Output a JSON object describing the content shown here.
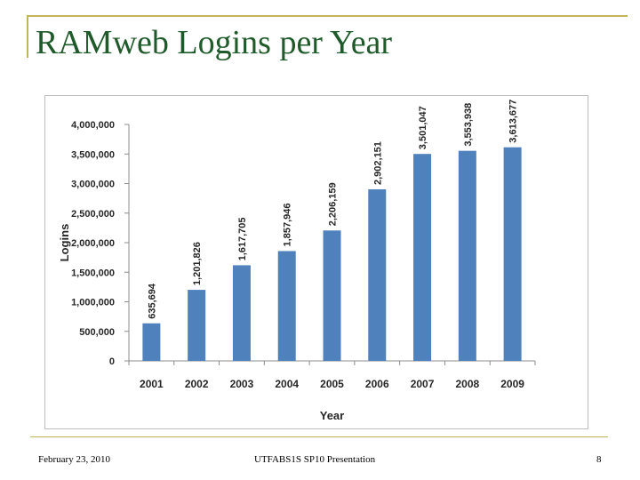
{
  "slide": {
    "title": "RAMweb Logins per Year",
    "footer_date": "February 23, 2010",
    "footer_center": "UTFABS1S SP10 Presentation",
    "page_number": "8"
  },
  "colors": {
    "title": "#1f5a2a",
    "accent_rule": "#c2b45a",
    "bar": "#4f81bd"
  },
  "chart_data": {
    "type": "bar",
    "categories": [
      "2001",
      "2002",
      "2003",
      "2004",
      "2005",
      "2006",
      "2007",
      "2008",
      "2009"
    ],
    "values": [
      635694,
      1201826,
      1617705,
      1857946,
      2206159,
      2902151,
      3501047,
      3553938,
      3613677
    ],
    "data_labels": [
      "635,694",
      "1,201,826",
      "1,617,705",
      "1,857,946",
      "2,206,159",
      "2,902,151",
      "3,501,047",
      "3,553,938",
      "3,613,677"
    ],
    "y_ticks": [
      0,
      500000,
      1000000,
      1500000,
      2000000,
      2500000,
      3000000,
      3500000,
      4000000
    ],
    "y_tick_labels": [
      "0",
      "500,000",
      "1,000,000",
      "1,500,000",
      "2,000,000",
      "2,500,000",
      "3,000,000",
      "3,500,000",
      "4,000,000"
    ],
    "ylim": [
      0,
      4000000
    ],
    "xlabel": "Year",
    "ylabel": "Logins",
    "grid": false,
    "legend": "none"
  }
}
